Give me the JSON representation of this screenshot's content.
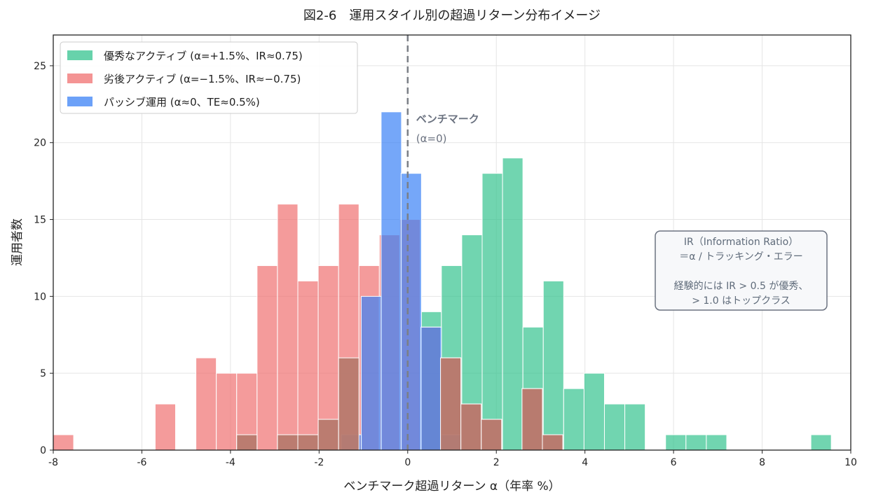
{
  "chart_data": {
    "type": "bar",
    "title": "図2-6　運用スタイル別の超過リターン分布イメージ",
    "xlabel": "ベンチマーク超過リターン α（年率 %）",
    "ylabel": "運用者数",
    "xlim": [
      -8,
      10
    ],
    "ylim": [
      0,
      27
    ],
    "xticks": [
      -8,
      -6,
      -4,
      -2,
      0,
      2,
      4,
      6,
      8,
      10
    ],
    "yticks": [
      0,
      5,
      10,
      15,
      20,
      25
    ],
    "grid": true,
    "legend_position": "top-left",
    "bin_width": 0.46,
    "series": [
      {
        "name": "優秀なアクティブ (α=+1.5%、IR≈0.75)",
        "color": "#34c38f",
        "bins": [
          {
            "x0": 0.3,
            "count": 9
          },
          {
            "x0": 0.76,
            "count": 12
          },
          {
            "x0": 1.22,
            "count": 14
          },
          {
            "x0": 1.68,
            "count": 18
          },
          {
            "x0": 2.14,
            "count": 19
          },
          {
            "x0": 2.6,
            "count": 8
          },
          {
            "x0": 3.06,
            "count": 11
          },
          {
            "x0": 3.52,
            "count": 4
          },
          {
            "x0": 3.98,
            "count": 5
          },
          {
            "x0": 4.44,
            "count": 3
          },
          {
            "x0": 4.9,
            "count": 3
          },
          {
            "x0": 5.82,
            "count": 1
          },
          {
            "x0": 6.28,
            "count": 1
          },
          {
            "x0": 6.74,
            "count": 1
          },
          {
            "x0": 9.1,
            "count": 1
          }
        ]
      },
      {
        "name": "劣後アクティブ (α=−1.5%、IR≈−0.75)",
        "color": "#f07070",
        "bins": [
          {
            "x0": -8.0,
            "count": 1
          },
          {
            "x0": -5.7,
            "count": 3
          },
          {
            "x0": -4.78,
            "count": 6
          },
          {
            "x0": -4.32,
            "count": 5
          },
          {
            "x0": -3.86,
            "count": 5
          },
          {
            "x0": -3.4,
            "count": 12
          },
          {
            "x0": -2.94,
            "count": 16
          },
          {
            "x0": -2.48,
            "count": 11
          },
          {
            "x0": -2.02,
            "count": 12
          },
          {
            "x0": -1.56,
            "count": 16
          },
          {
            "x0": -1.1,
            "count": 12
          },
          {
            "x0": -0.64,
            "count": 14
          },
          {
            "x0": -0.18,
            "count": 15
          },
          {
            "x0": 0.28,
            "count": 8
          },
          {
            "x0": 0.74,
            "count": 6
          },
          {
            "x0": 1.2,
            "count": 3
          },
          {
            "x0": 1.66,
            "count": 2
          },
          {
            "x0": 2.58,
            "count": 4
          },
          {
            "x0": 3.04,
            "count": 1
          }
        ]
      },
      {
        "name": "パッシブ運用 (α≈0、TE≈0.5%)",
        "color": "#3b82f6",
        "bins": [
          {
            "x0": -1.5,
            "count": 1
          },
          {
            "x0": -1.05,
            "count": 10
          },
          {
            "x0": -0.6,
            "count": 22
          },
          {
            "x0": -0.15,
            "count": 18
          },
          {
            "x0": 0.3,
            "count": 8
          },
          {
            "x0": 0.75,
            "count": 1
          }
        ]
      }
    ],
    "overlaps": [
      {
        "x0": -3.86,
        "count": 1
      },
      {
        "x0": -2.94,
        "count": 1
      },
      {
        "x0": -2.48,
        "count": 1
      },
      {
        "x0": -2.02,
        "count": 2
      },
      {
        "x0": -1.56,
        "count": 6
      },
      {
        "x0": 0.74,
        "count": 6
      },
      {
        "x0": 1.2,
        "count": 3
      },
      {
        "x0": 1.66,
        "count": 2
      },
      {
        "x0": 2.58,
        "count": 4
      },
      {
        "x0": 3.04,
        "count": 1
      }
    ],
    "benchmark_line": {
      "x": 0,
      "label": "ベンチマーク",
      "sublabel": "(α=0)"
    },
    "annotation": {
      "lines": [
        "IR（Information Ratio）",
        "＝α / トラッキング・エラー",
        "",
        "経験的には IR > 0.5 が優秀、",
        "> 1.0 はトップクラス"
      ]
    }
  },
  "colors": {
    "overlap": "#b77a6e",
    "benchmark": "#7b7f86",
    "note_border": "#6b7280",
    "note_bg": "#f7f8fa"
  }
}
